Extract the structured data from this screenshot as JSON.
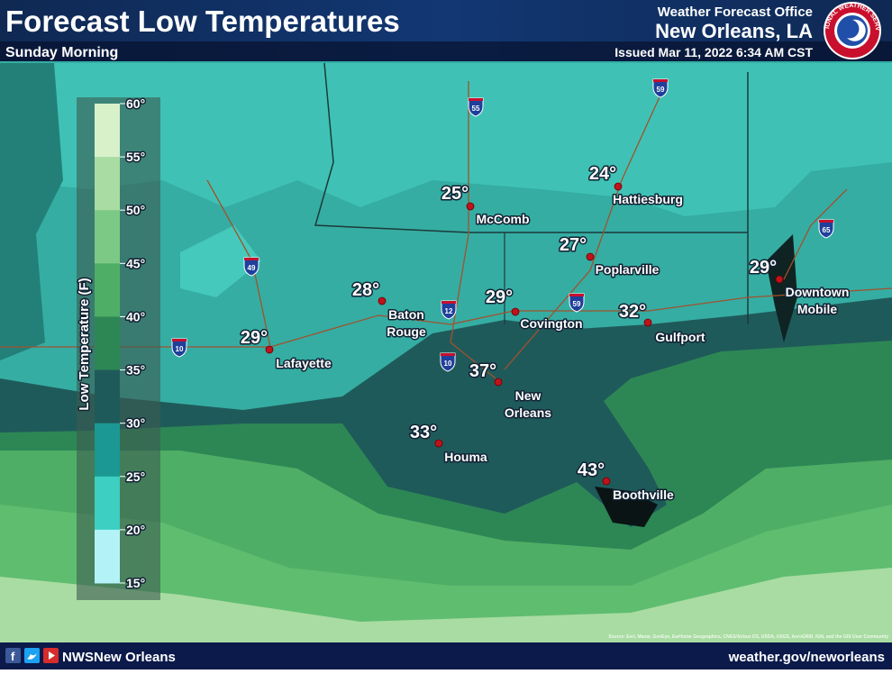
{
  "header": {
    "title": "Forecast Low Temperatures",
    "subtitle": "Sunday Morning",
    "office": "Weather Forecast Office",
    "location": "New Orleans, LA",
    "issued": "Issued Mar 11, 2022 6:34 AM CST",
    "logo_text": "NATIONAL WEATHER SERVICE"
  },
  "legend": {
    "title": "Low Temperature (F)",
    "ticks": [
      "60°",
      "55°",
      "50°",
      "45°",
      "40°",
      "35°",
      "30°",
      "25°",
      "20°",
      "15°"
    ],
    "colors": [
      "#d8f1c9",
      "#a9dca2",
      "#7cc985",
      "#4fae66",
      "#2d8755",
      "#1f5a5a",
      "#1b9893",
      "#3ccfc2",
      "#b3f3f8"
    ]
  },
  "cities": [
    {
      "name": [
        "McComb"
      ],
      "temp": "25°"
    },
    {
      "name": [
        "Hattiesburg"
      ],
      "temp": "24°"
    },
    {
      "name": [
        "Poplarville"
      ],
      "temp": "27°"
    },
    {
      "name": [
        "Baton",
        "Rouge"
      ],
      "temp": "28°"
    },
    {
      "name": [
        "Covington"
      ],
      "temp": "29°"
    },
    {
      "name": [
        "Gulfport"
      ],
      "temp": "32°"
    },
    {
      "name": [
        "Lafayette"
      ],
      "temp": "29°"
    },
    {
      "name": [
        "New",
        "Orleans"
      ],
      "temp": "37°"
    },
    {
      "name": [
        "Houma"
      ],
      "temp": "33°"
    },
    {
      "name": [
        "Boothville"
      ],
      "temp": "43°"
    },
    {
      "name": [
        "Downtown",
        "Mobile"
      ],
      "temp": "29°"
    }
  ],
  "interstates": [
    "59",
    "55",
    "49",
    "12",
    "10",
    "10",
    "59",
    "65"
  ],
  "source": "Source: Esri, Maxar, GeoEye, Earthstar Geographics, CNES/Airbus DS, USDA, USGS, AeroGRID, IGN, and the GIS User Community",
  "footer": {
    "handle": "NWSNew Orleans",
    "url": "weather.gov/neworleans"
  }
}
